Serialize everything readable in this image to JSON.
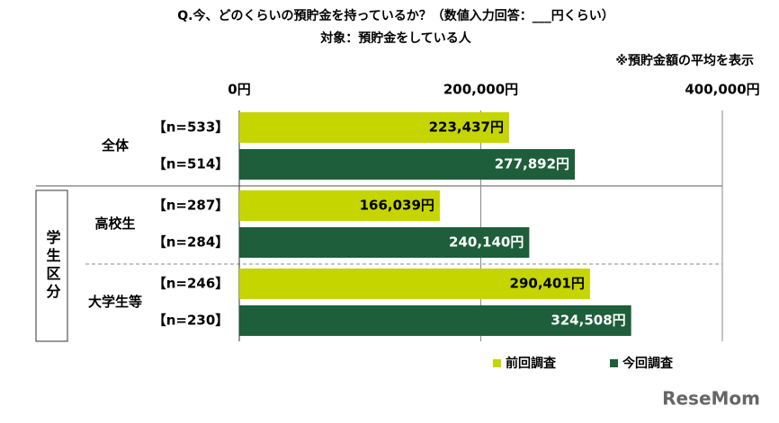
{
  "chart_data": {
    "type": "bar",
    "orientation": "horizontal",
    "title": "Q.今、どのくらいの預貯金を持っているか？（数値入力回答：___円くらい）",
    "subtitle": "対象：預貯金をしている人",
    "note": "※預貯金額の平均を表示",
    "categories": [
      "全体",
      "高校生",
      "大学生等"
    ],
    "category_group": "学生区分",
    "series": [
      {
        "name": "前回調査",
        "color": "#c5d500",
        "label_color": "#000000",
        "values": [
          223437,
          166039,
          290401
        ],
        "value_labels": [
          "223,437円",
          "166,039円",
          "290,401円"
        ],
        "n_labels": [
          "【n=533】",
          "【n=287】",
          "【n=246】"
        ]
      },
      {
        "name": "今回調査",
        "color": "#1e5e3b",
        "label_color": "#ffffff",
        "values": [
          277892,
          240140,
          324508
        ],
        "value_labels": [
          "277,892円",
          "240,140円",
          "324,508円"
        ],
        "n_labels": [
          "【n=514】",
          "【n=284】",
          "【n=230】"
        ]
      }
    ],
    "xlim": [
      0,
      400000
    ],
    "xticks": [
      {
        "value": 0,
        "label": "0円"
      },
      {
        "value": 200000,
        "label": "200,000円"
      },
      {
        "value": 400000,
        "label": "400,000円"
      }
    ],
    "grid": true,
    "watermark": "ReseMom"
  }
}
